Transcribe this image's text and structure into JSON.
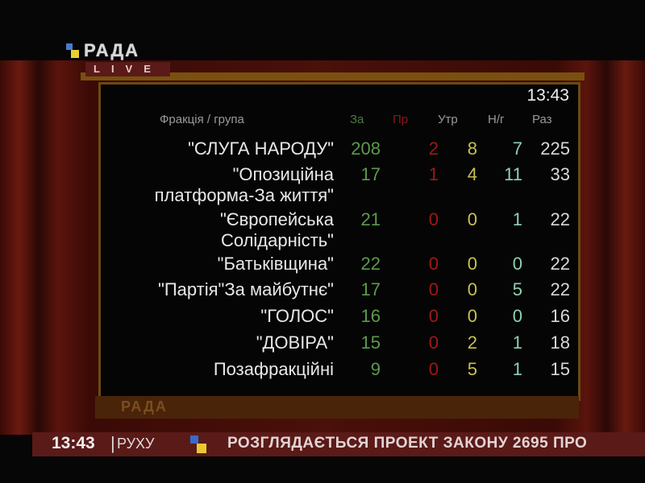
{
  "channel": {
    "logo_text": "РАДА",
    "live_label": "LIVE",
    "bezel_logo": "РАДА"
  },
  "board": {
    "time": "13:43",
    "headers": {
      "faction": "Фракція / група",
      "za": "За",
      "pr": "Пр",
      "utr": "Утр",
      "ng": "Н/г",
      "raz": "Раз"
    },
    "rows": [
      {
        "name": [
          "\"СЛУГА НАРОДУ\""
        ],
        "za": "208",
        "pr": "2",
        "utr": "8",
        "ng": "7",
        "raz": "225"
      },
      {
        "name": [
          "\"Опозиційна",
          "платформа-За життя\""
        ],
        "za": "17",
        "pr": "1",
        "utr": "4",
        "ng": "11",
        "raz": "33"
      },
      {
        "name": [
          "\"Європейська",
          "Солідарність\""
        ],
        "za": "21",
        "pr": "0",
        "utr": "0",
        "ng": "1",
        "raz": "22"
      },
      {
        "name": [
          "\"Батьківщина\""
        ],
        "za": "22",
        "pr": "0",
        "utr": "0",
        "ng": "0",
        "raz": "22"
      },
      {
        "name": [
          "\"Партія\"За майбутнє\""
        ],
        "za": "17",
        "pr": "0",
        "utr": "0",
        "ng": "5",
        "raz": "22"
      },
      {
        "name": [
          "\"ГОЛОС\""
        ],
        "za": "16",
        "pr": "0",
        "utr": "0",
        "ng": "0",
        "raz": "16"
      },
      {
        "name": [
          "\"ДОВІРА\""
        ],
        "za": "15",
        "pr": "0",
        "utr": "2",
        "ng": "1",
        "raz": "18"
      },
      {
        "name": [
          "Позафракційні"
        ],
        "za": "9",
        "pr": "0",
        "utr": "5",
        "ng": "1",
        "raz": "15"
      }
    ]
  },
  "ticker": {
    "time": "13:43",
    "sub": "РУХУ",
    "text": "РОЗГЛЯДАЄТЬСЯ ПРОЕКТ ЗАКОНУ 2695 ПРО"
  },
  "colors": {
    "za": "#5c9a4c",
    "pr": "#a01818",
    "utr": "#c8c050",
    "ng": "#90d0b0",
    "raz": "#d8d8d8",
    "ticker_bg": "#5a1a18"
  }
}
